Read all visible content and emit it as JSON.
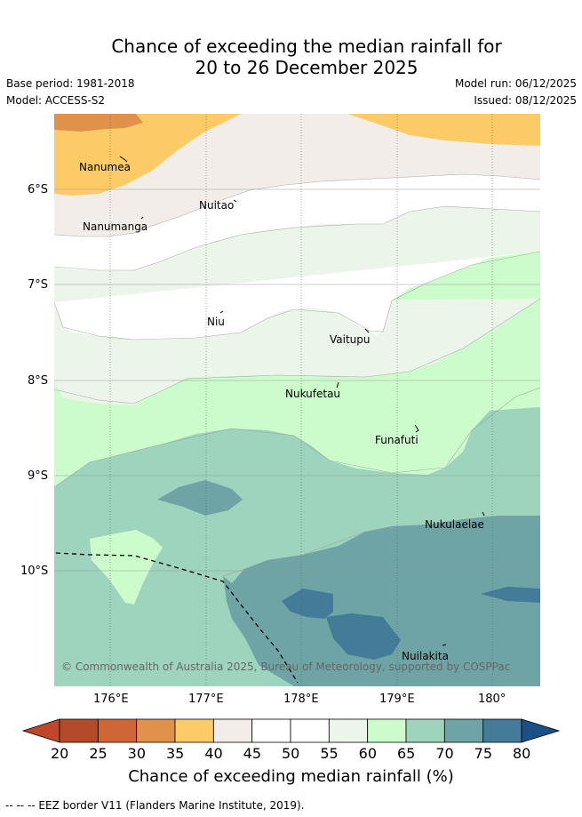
{
  "title": {
    "line1": "Chance of exceeding the median rainfall for",
    "line2": "20 to 26 December 2025"
  },
  "meta": {
    "base_period": "Base period: 1981-2018",
    "model": "Model: ACCESS-S2",
    "model_run": "Model run: 06/12/2025",
    "issued": "Issued: 08/12/2025"
  },
  "map": {
    "lat_labels": [
      "6°S",
      "7°S",
      "8°S",
      "9°S",
      "10°S"
    ],
    "lon_labels": [
      "176°E",
      "177°E",
      "178°E",
      "179°E",
      "180°"
    ],
    "places": [
      {
        "name": "Nanumea"
      },
      {
        "name": "Nuitao"
      },
      {
        "name": "Nanumanga"
      },
      {
        "name": "Niu"
      },
      {
        "name": "Vaitupu"
      },
      {
        "name": "Nukufetau"
      },
      {
        "name": "Funafuti"
      },
      {
        "name": "Nukulaelae"
      },
      {
        "name": "Nuilakita"
      }
    ],
    "credit": "© Commonwealth of Australia 2025, Bureau of Meteorology, supported by COSPPac"
  },
  "colorbar": {
    "label": "Chance of exceeding median rainfall (%)",
    "ticks": [
      "20",
      "25",
      "30",
      "35",
      "40",
      "45",
      "50",
      "55",
      "60",
      "65",
      "70",
      "75",
      "80"
    ],
    "colors": {
      "under": "#c0472a",
      "20-25": "#b34a28",
      "25-30": "#cf6636",
      "30-35": "#e0924a",
      "35-40": "#fdcb65",
      "40-45": "#f2ede8",
      "45-50": "#ffffff",
      "50-55": "#ffffff",
      "55-60": "#ebf5ea",
      "60-65": "#ccfccc",
      "65-70": "#9ed3bd",
      "70-75": "#6ea4a5",
      "75-80": "#437b99",
      "over": "#1b4f86"
    }
  },
  "footer": {
    "eez_note": "--  --  -- EEZ border V11 (Flanders Marine Institute, 2019)."
  }
}
